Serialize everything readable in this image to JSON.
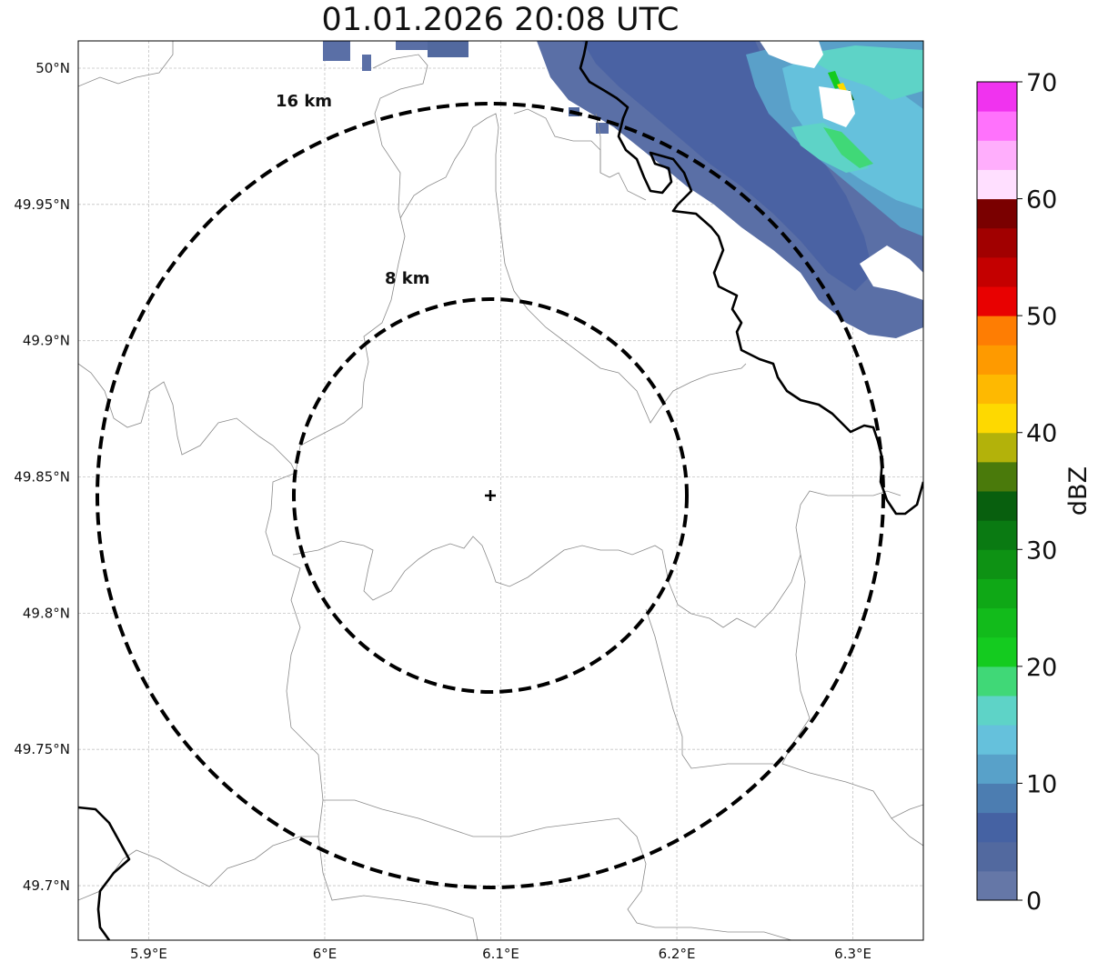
{
  "title": "01.01.2026 20:08 UTC",
  "map": {
    "lon_range": [
      5.86,
      6.34
    ],
    "lat_range": [
      49.68,
      50.01
    ],
    "radar_site": {
      "lon": 6.095,
      "lat": 49.843
    },
    "lat_ticks": [
      {
        "value": 50.0,
        "label": "50°N"
      },
      {
        "value": 49.95,
        "label": "49.95°N"
      },
      {
        "value": 49.9,
        "label": "49.9°N"
      },
      {
        "value": 49.85,
        "label": "49.85°N"
      },
      {
        "value": 49.8,
        "label": "49.8°N"
      },
      {
        "value": 49.75,
        "label": "49.75°N"
      },
      {
        "value": 49.7,
        "label": "49.7°N"
      }
    ],
    "lon_ticks": [
      {
        "value": 5.9,
        "label": "5.9°E"
      },
      {
        "value": 6.0,
        "label": "6°E"
      },
      {
        "value": 6.1,
        "label": "6.1°E"
      },
      {
        "value": 6.2,
        "label": "6.2°E"
      },
      {
        "value": 6.3,
        "label": "6.3°E"
      }
    ],
    "range_rings": [
      {
        "radius_km": 16,
        "label": "16 km"
      },
      {
        "radius_km": 8,
        "label": "8 km"
      }
    ],
    "gridlines": true
  },
  "colorbar": {
    "label": "dBZ",
    "min": 0,
    "max": 70,
    "step": 2.5,
    "tick_labels": [
      "0",
      "10",
      "20",
      "30",
      "40",
      "50",
      "60",
      "70"
    ],
    "colors": [
      "#6577a7",
      "#52699f",
      "#4562a3",
      "#4c7db1",
      "#58a1c9",
      "#65c1dc",
      "#5ed3c7",
      "#40d877",
      "#14cb1f",
      "#12bb1b",
      "#0fa816",
      "#0e9214",
      "#0a7a12",
      "#085f0e",
      "#4a7a0b",
      "#b3b20a",
      "#fed900",
      "#feb901",
      "#fe9a00",
      "#fe7d03",
      "#e80101",
      "#c40000",
      "#a10000",
      "#7a0000",
      "#ffdfff",
      "#ffaefc",
      "#ff72fc",
      "#f033ef"
    ]
  },
  "reflectivity_echo": {
    "location": "northeast corner of map",
    "dominant_dbz": "0-15",
    "max_dbz": "about 25-40"
  }
}
